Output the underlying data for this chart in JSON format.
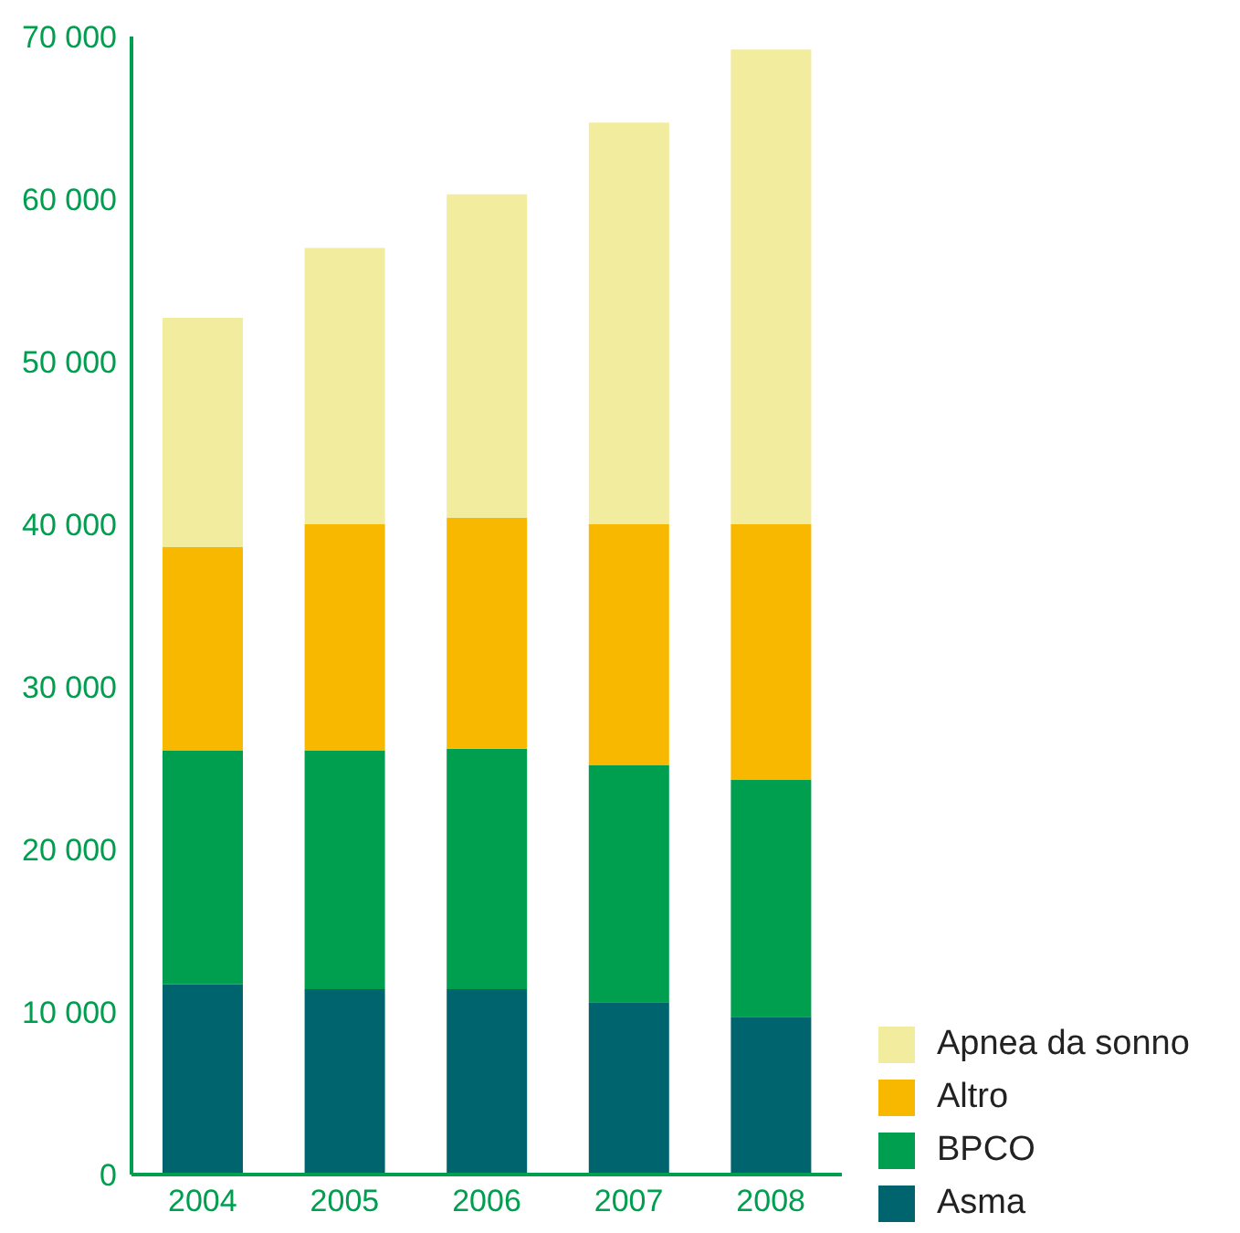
{
  "chart_data": {
    "type": "bar",
    "stacked": true,
    "categories": [
      "2004",
      "2005",
      "2006",
      "2007",
      "2008"
    ],
    "series": [
      {
        "name": "Asma",
        "color": "#00646f",
        "values": [
          11700,
          11400,
          11400,
          10600,
          9700
        ]
      },
      {
        "name": "BPCO",
        "color": "#009e4f",
        "values": [
          14400,
          14700,
          14800,
          14600,
          14600
        ]
      },
      {
        "name": "Altro",
        "color": "#f9b800",
        "values": [
          12500,
          13900,
          14200,
          14800,
          15700
        ]
      },
      {
        "name": "Apnea da sonno",
        "color": "#f2ec9e",
        "values": [
          14100,
          17000,
          19900,
          24700,
          29200
        ]
      }
    ],
    "ylim": [
      0,
      70000
    ],
    "yticks": [
      0,
      {
        "value": 10000,
        "label": "10 000"
      },
      {
        "value": 20000,
        "label": "20 000"
      },
      {
        "value": 30000,
        "label": "30 000"
      },
      {
        "value": 40000,
        "label": "40 000"
      },
      {
        "value": 50000,
        "label": "50 000"
      },
      {
        "value": 60000,
        "label": "60 000"
      },
      {
        "value": 70000,
        "label": "70 000"
      }
    ],
    "grid": false,
    "legend": "bottom right"
  }
}
